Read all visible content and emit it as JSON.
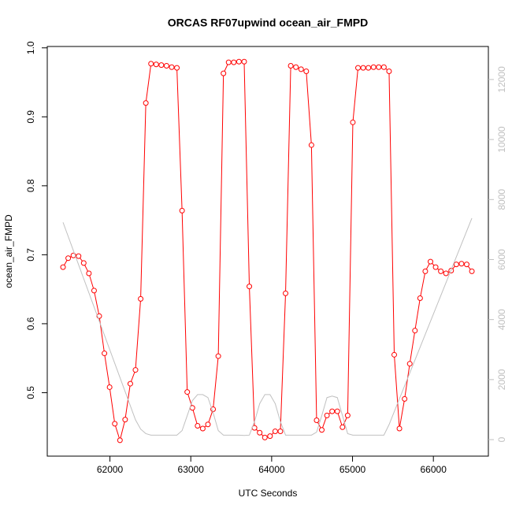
{
  "chart_data": {
    "type": "line",
    "title": "ORCAS RF07upwind ocean_air_FMPD",
    "x_label": "UTC Seconds",
    "y_label": "ocean_air_FMPD",
    "x": [
      61420,
      61484,
      61548,
      61612,
      61676,
      61740,
      61804,
      61868,
      61932,
      61996,
      62060,
      62124,
      62188,
      62252,
      62316,
      62380,
      62444,
      62508,
      62572,
      62636,
      62700,
      62764,
      62828,
      62892,
      62956,
      63020,
      63084,
      63148,
      63212,
      63276,
      63340,
      63404,
      63468,
      63532,
      63596,
      63660,
      63724,
      63788,
      63852,
      63916,
      63980,
      64044,
      64108,
      64172,
      64236,
      64300,
      64364,
      64428,
      64492,
      64556,
      64620,
      64684,
      64748,
      64812,
      64876,
      64940,
      65004,
      65068,
      65132,
      65196,
      65260,
      65324,
      65388,
      65452,
      65516,
      65580,
      65644,
      65708,
      65772,
      65836,
      65900,
      65964,
      66028,
      66092,
      66156,
      66220,
      66284,
      66348,
      66412,
      66476
    ],
    "series": [
      {
        "color": "#ff0000",
        "markers": true,
        "values": [
          0.682,
          0.695,
          0.699,
          0.698,
          0.688,
          0.673,
          0.648,
          0.611,
          0.557,
          0.508,
          0.455,
          0.431,
          0.461,
          0.513,
          0.533,
          0.636,
          0.92,
          0.977,
          0.976,
          0.975,
          0.974,
          0.972,
          0.971,
          0.764,
          0.501,
          0.478,
          0.452,
          0.448,
          0.454,
          0.476,
          0.553,
          0.963,
          0.979,
          0.979,
          0.98,
          0.98,
          0.654,
          0.449,
          0.442,
          0.435,
          0.437,
          0.444,
          0.444,
          0.644,
          0.974,
          0.972,
          0.969,
          0.966,
          0.859,
          0.46,
          0.446,
          0.467,
          0.473,
          0.473,
          0.45,
          0.467,
          0.892,
          0.971,
          0.971,
          0.971,
          0.972,
          0.972,
          0.972,
          0.966,
          0.555,
          0.448,
          0.491,
          0.542,
          0.59,
          0.637,
          0.676,
          0.69,
          0.682,
          0.676,
          0.673,
          0.677,
          0.686,
          0.687,
          0.686,
          0.676
        ]
      },
      {
        "color": "#c0c0c0",
        "markers": false,
        "axis": "y2",
        "values": [
          7240,
          6770,
          6300,
          5830,
          5360,
          4890,
          4420,
          3950,
          3480,
          3010,
          2540,
          2070,
          1600,
          1130,
          660,
          350,
          200,
          150,
          150,
          150,
          150,
          150,
          150,
          300,
          800,
          1300,
          1500,
          1500,
          1400,
          900,
          300,
          150,
          150,
          150,
          150,
          140,
          150,
          600,
          1200,
          1500,
          1500,
          1200,
          600,
          150,
          150,
          150,
          150,
          150,
          150,
          250,
          800,
          1400,
          1450,
          1400,
          800,
          200,
          150,
          150,
          150,
          150,
          150,
          150,
          150,
          500,
          930,
          1360,
          1790,
          2220,
          2650,
          3080,
          3510,
          3940,
          4370,
          4800,
          5230,
          5660,
          6090,
          6520,
          6950,
          7380
        ]
      }
    ],
    "xlim": [
      61225,
      66680
    ],
    "xticks": [
      62000,
      63000,
      64000,
      65000,
      66000
    ],
    "ylim": [
      0.408,
      1.002
    ],
    "yticks": [
      0.5,
      0.6,
      0.7,
      0.8,
      0.9,
      {
        "value": 1,
        "label": "1.0"
      }
    ],
    "y2lim": [
      -550,
      13100
    ],
    "y2ticks": [
      0,
      2000,
      4000,
      6000,
      8000,
      10000,
      12000
    ],
    "y2_color": "#c0c0c0"
  }
}
